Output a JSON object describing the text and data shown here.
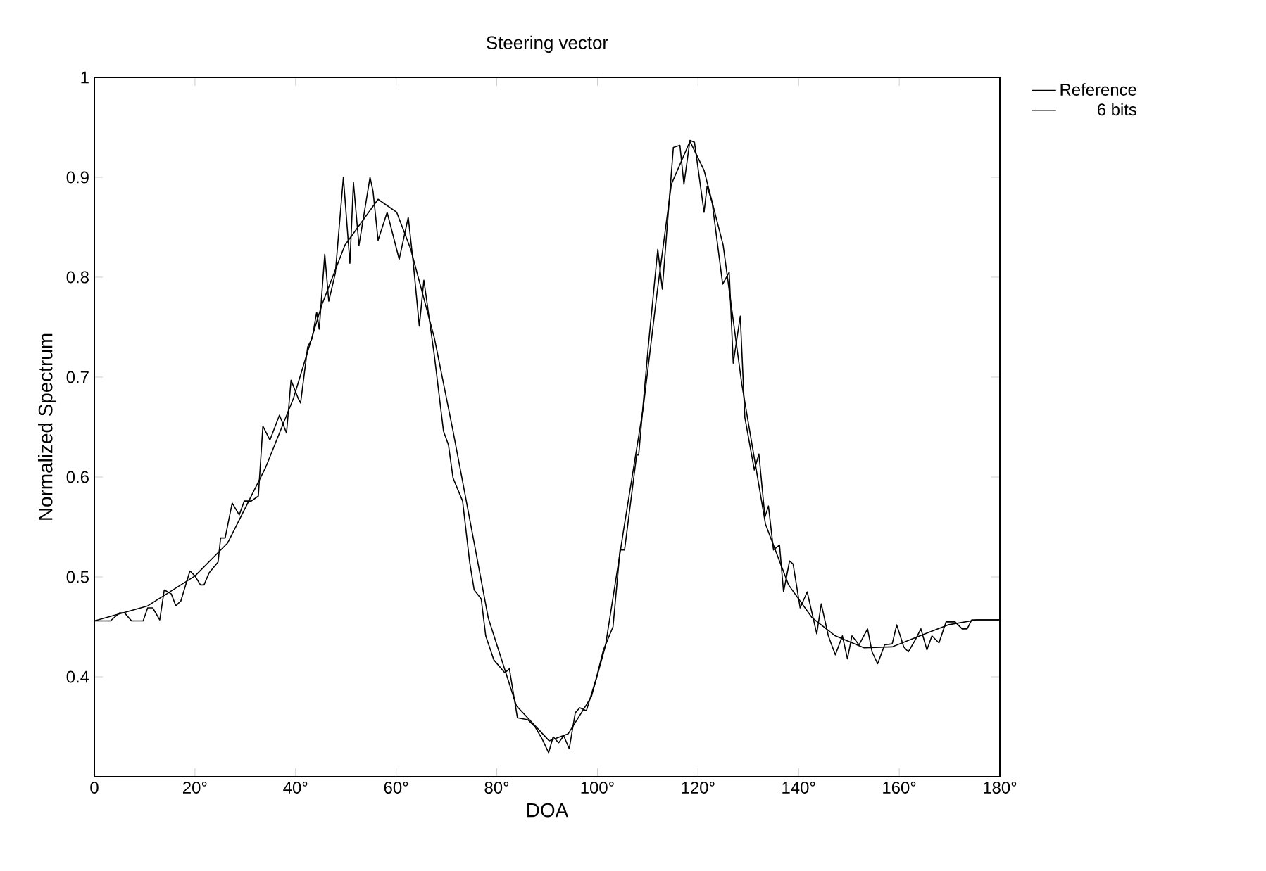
{
  "chart_data": {
    "type": "line",
    "title": "Steering vector",
    "xlabel": "DOA",
    "ylabel": "Normalized Spectrum",
    "xlim": [
      0,
      180
    ],
    "ylim": [
      0.3,
      1
    ],
    "xticks": [
      0,
      {
        "value": 20,
        "label": "20°"
      },
      {
        "value": 40,
        "label": "40°"
      },
      {
        "value": 60,
        "label": "60°"
      },
      {
        "value": 80,
        "label": "80°"
      },
      {
        "value": 100,
        "label": "100°"
      },
      {
        "value": 120,
        "label": "120°"
      },
      {
        "value": 140,
        "label": "140°"
      },
      {
        "value": 160,
        "label": "160°"
      },
      {
        "value": 180,
        "label": "180°"
      }
    ],
    "yticks": [
      0.4,
      0.5,
      0.6,
      0.7,
      0.8,
      0.9,
      1
    ],
    "legend": "top right",
    "line_style": "solid",
    "marker": "none",
    "series": [
      {
        "name": "Reference",
        "color": "#000000",
        "x": [
          0,
          10.6,
          20,
          26.5,
          34,
          39.6,
          45.2,
          49.8,
          56.4,
          60.1,
          62.9,
          67.6,
          71.3,
          73.6,
          78.3,
          83.9,
          90.4,
          94.2,
          98.8,
          101.6,
          105.4,
          109.1,
          111.9,
          114.7,
          118.4,
          121.2,
          125,
          128.7,
          133.4,
          138,
          142.7,
          147.3,
          153,
          158.6,
          164.1,
          169.7,
          175.4,
          180
        ],
        "values": [
          0.456,
          0.471,
          0.501,
          0.534,
          0.609,
          0.679,
          0.772,
          0.832,
          0.878,
          0.865,
          0.828,
          0.739,
          0.646,
          0.585,
          0.459,
          0.371,
          0.336,
          0.343,
          0.38,
          0.431,
          0.553,
          0.669,
          0.786,
          0.893,
          0.936,
          0.907,
          0.832,
          0.693,
          0.553,
          0.492,
          0.459,
          0.441,
          0.429,
          0.43,
          0.441,
          0.452,
          0.457,
          0.457
        ]
      },
      {
        "name": "6 bits",
        "color": "#000000",
        "x": [
          0,
          3.2,
          5,
          6,
          7.4,
          9.7,
          10.6,
          11.6,
          13,
          13.9,
          15.3,
          16.2,
          17.2,
          19,
          20,
          21.1,
          21.8,
          22.8,
          24.6,
          25.1,
          26,
          27.4,
          28.8,
          29.8,
          31.2,
          32.6,
          33.5,
          34.9,
          36.8,
          38.2,
          39.1,
          40.5,
          41,
          42.4,
          43.3,
          44.2,
          44.7,
          45.8,
          46.6,
          47.9,
          49.5,
          50.8,
          51.5,
          52.6,
          54.8,
          55.4,
          56.4,
          58.2,
          60.6,
          62.4,
          63.4,
          64.6,
          65.5,
          66.2,
          67.6,
          69.4,
          70.4,
          71.3,
          73.2,
          74.6,
          75.5,
          76.9,
          77.8,
          79.4,
          81.6,
          82.5,
          84.1,
          86.2,
          87.6,
          89,
          90.3,
          91.2,
          92.3,
          93.3,
          94.4,
          95.6,
          96.5,
          97.8,
          99.8,
          101.2,
          103.1,
          104.5,
          105.4,
          107.8,
          108.2,
          110.1,
          112,
          112.9,
          115.1,
          116.4,
          117.2,
          118.4,
          119.3,
          121.2,
          121.8,
          122.8,
          124.9,
          126.2,
          127,
          128.4,
          129.3,
          131.2,
          132.1,
          133.3,
          134,
          135,
          136.2,
          137,
          138.2,
          138.9,
          140.3,
          141.7,
          143.6,
          144.5,
          145.9,
          147.3,
          148.7,
          149.7,
          150.6,
          152,
          153.7,
          154.6,
          155.7,
          157.1,
          158.6,
          159.5,
          160.9,
          161.8,
          163.2,
          164.3,
          165.5,
          166.5,
          167.9,
          169.3,
          171.1,
          172.5,
          173.5,
          174.4,
          176.3,
          177.2,
          180
        ],
        "values": [
          0.456,
          0.456,
          0.464,
          0.464,
          0.456,
          0.456,
          0.469,
          0.469,
          0.457,
          0.487,
          0.483,
          0.471,
          0.476,
          0.506,
          0.501,
          0.492,
          0.492,
          0.504,
          0.515,
          0.539,
          0.539,
          0.574,
          0.562,
          0.576,
          0.576,
          0.581,
          0.651,
          0.637,
          0.662,
          0.644,
          0.697,
          0.679,
          0.674,
          0.73,
          0.739,
          0.765,
          0.748,
          0.823,
          0.776,
          0.804,
          0.9,
          0.814,
          0.895,
          0.832,
          0.9,
          0.886,
          0.837,
          0.865,
          0.818,
          0.86,
          0.814,
          0.751,
          0.797,
          0.772,
          0.721,
          0.646,
          0.632,
          0.599,
          0.576,
          0.515,
          0.487,
          0.478,
          0.441,
          0.417,
          0.404,
          0.408,
          0.359,
          0.357,
          0.35,
          0.338,
          0.324,
          0.34,
          0.334,
          0.341,
          0.328,
          0.364,
          0.369,
          0.366,
          0.399,
          0.427,
          0.45,
          0.527,
          0.527,
          0.622,
          0.622,
          0.73,
          0.828,
          0.788,
          0.93,
          0.932,
          0.893,
          0.937,
          0.935,
          0.865,
          0.891,
          0.875,
          0.793,
          0.805,
          0.714,
          0.761,
          0.66,
          0.607,
          0.623,
          0.56,
          0.571,
          0.527,
          0.532,
          0.485,
          0.516,
          0.513,
          0.469,
          0.485,
          0.443,
          0.473,
          0.441,
          0.422,
          0.441,
          0.418,
          0.441,
          0.432,
          0.448,
          0.425,
          0.413,
          0.432,
          0.433,
          0.452,
          0.43,
          0.425,
          0.437,
          0.448,
          0.427,
          0.441,
          0.434,
          0.455,
          0.455,
          0.448,
          0.448,
          0.457,
          0.457,
          0.457,
          0.457
        ]
      }
    ]
  }
}
